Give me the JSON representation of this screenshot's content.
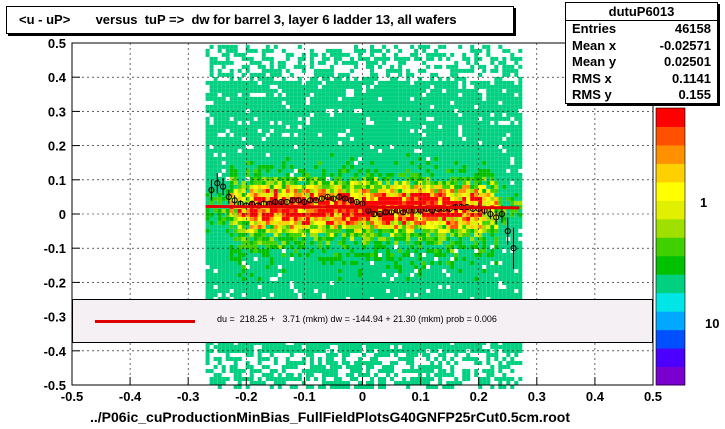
{
  "chart_data": {
    "type": "heatmap",
    "title": "<u - uP>       versus  tuP =>  dw for barrel 3, layer 6 ladder 13, all wafers",
    "xlabel": "../P06ic_cuProductionMinBias_FullFieldPlotsG40GNFP25rCut0.5cm.root",
    "ylabel": "",
    "xlim": [
      -0.5,
      0.5
    ],
    "ylim": [
      -0.5,
      0.5
    ],
    "x_ticks": [
      "-0.5",
      "-0.4",
      "-0.3",
      "-0.2",
      "-0.1",
      "0",
      "0.1",
      "0.2",
      "0.3",
      "0.4",
      "0.5"
    ],
    "y_ticks": [
      "0.5",
      "0.4",
      "0.3",
      "0.2",
      "0.1",
      "0",
      "-0.1",
      "-0.2",
      "-0.3",
      "-0.4",
      "-0.5"
    ],
    "grid": true,
    "color_scale": {
      "type": "log",
      "labels": [
        "1",
        "10"
      ],
      "colors": [
        "#7a00d0",
        "#4b00ff",
        "#0050ff",
        "#00a8ff",
        "#00e6e6",
        "#00d080",
        "#00c000",
        "#40d000",
        "#a0e000",
        "#e0f000",
        "#ffff00",
        "#ffd000",
        "#ff9000",
        "#ff5000",
        "#ff0000"
      ]
    },
    "stats": {
      "name": "dutuP6013",
      "entries_label": "Entries",
      "entries": "46158",
      "meanx_label": "Mean x",
      "meanx": "-0.02571",
      "meany_label": "Mean y",
      "meany": "0.02501",
      "rmsx_label": "RMS x",
      "rmsx": "0.1141",
      "rmsy_label": "RMS y",
      "rmsy": "0.155"
    },
    "fit": {
      "text": "du =  218.25 +   3.71 (mkm) dw = -144.94 + 21.30 (mkm) prob = 0.006",
      "color": "#e00000",
      "x_range": [
        -0.27,
        0.27
      ],
      "y_start": 0.022,
      "y_end": 0.018
    },
    "profile_points": {
      "x": [
        -0.26,
        -0.25,
        -0.24,
        -0.23,
        -0.22,
        -0.21,
        -0.2,
        -0.19,
        -0.18,
        -0.17,
        -0.16,
        -0.15,
        -0.14,
        -0.13,
        -0.12,
        -0.11,
        -0.1,
        -0.09,
        -0.08,
        -0.07,
        -0.06,
        -0.05,
        -0.04,
        -0.03,
        -0.02,
        -0.01,
        0.0,
        0.01,
        0.02,
        0.03,
        0.04,
        0.05,
        0.06,
        0.07,
        0.08,
        0.09,
        0.1,
        0.11,
        0.12,
        0.13,
        0.14,
        0.15,
        0.16,
        0.17,
        0.18,
        0.19,
        0.2,
        0.21,
        0.22,
        0.23,
        0.24,
        0.25,
        0.26
      ],
      "y": [
        0.07,
        0.09,
        0.08,
        0.05,
        0.04,
        0.03,
        0.025,
        0.03,
        0.025,
        0.03,
        0.03,
        0.035,
        0.035,
        0.035,
        0.04,
        0.04,
        0.035,
        0.04,
        0.04,
        0.045,
        0.05,
        0.045,
        0.05,
        0.045,
        0.04,
        0.035,
        0.03,
        0.01,
        0.0,
        0.0,
        0.005,
        0.005,
        0.01,
        0.005,
        0.01,
        0.01,
        0.01,
        0.015,
        0.01,
        0.015,
        0.015,
        0.015,
        0.02,
        0.02,
        0.02,
        0.015,
        0.015,
        0.01,
        0.0,
        -0.01,
        0.0,
        -0.05,
        -0.1
      ],
      "err": [
        0.03,
        0.03,
        0.025,
        0.02,
        0.015,
        0.01,
        0.008,
        0.008,
        0.007,
        0.007,
        0.006,
        0.006,
        0.006,
        0.005,
        0.005,
        0.005,
        0.005,
        0.005,
        0.005,
        0.005,
        0.005,
        0.005,
        0.005,
        0.005,
        0.005,
        0.005,
        0.005,
        0.005,
        0.005,
        0.005,
        0.005,
        0.005,
        0.005,
        0.005,
        0.005,
        0.005,
        0.005,
        0.006,
        0.006,
        0.006,
        0.006,
        0.007,
        0.007,
        0.008,
        0.008,
        0.009,
        0.01,
        0.012,
        0.015,
        0.02,
        0.025,
        0.04,
        0.06
      ]
    }
  }
}
